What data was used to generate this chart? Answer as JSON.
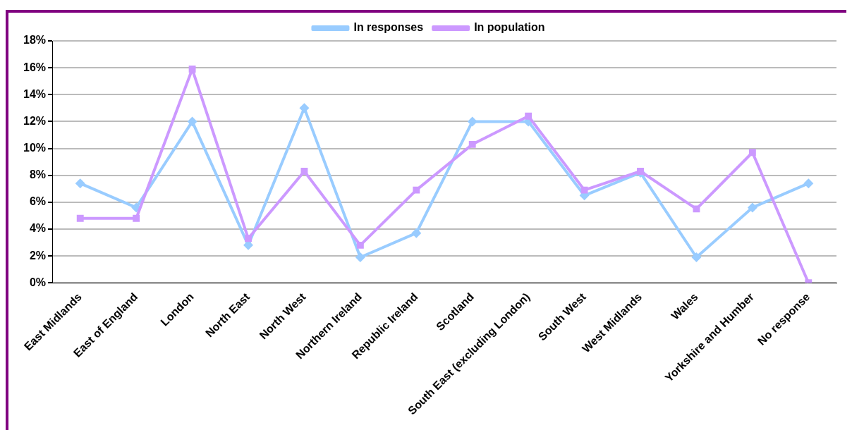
{
  "chart_data": {
    "type": "line",
    "categories": [
      "East Midlands",
      "East of England",
      "London",
      "North East",
      "North West",
      "Northern Ireland",
      "Republic Ireland",
      "Scotland",
      "South East (excluding London)",
      "South West",
      "West Midlands",
      "Wales",
      "Yorkshire and Humber",
      "No response"
    ],
    "series": [
      {
        "name": "In responses",
        "color": "#99ccff",
        "marker": "diamond",
        "values": [
          7.4,
          5.6,
          12,
          2.8,
          13,
          1.9,
          3.7,
          12,
          12,
          6.5,
          8.2,
          1.9,
          5.6,
          7.4
        ]
      },
      {
        "name": "In population",
        "color": "#cc99ff",
        "marker": "square",
        "values": [
          4.8,
          4.8,
          15.9,
          3.3,
          8.3,
          2.8,
          6.9,
          10.3,
          12.4,
          6.9,
          8.3,
          5.5,
          9.7,
          0
        ]
      }
    ],
    "ylim": [
      0,
      18
    ],
    "yticks": [
      {
        "value": 0,
        "label": "0%"
      },
      {
        "value": 2,
        "label": "2%"
      },
      {
        "value": 4,
        "label": "4%"
      },
      {
        "value": 6,
        "label": "6%"
      },
      {
        "value": 8,
        "label": "8%"
      },
      {
        "value": 10,
        "label": "10%"
      },
      {
        "value": 12,
        "label": "12%"
      },
      {
        "value": 14,
        "label": "14%"
      },
      {
        "value": 16,
        "label": "16%"
      },
      {
        "value": 18,
        "label": "18%"
      }
    ],
    "grid": "y",
    "legend": "top",
    "line_style": "solid"
  }
}
